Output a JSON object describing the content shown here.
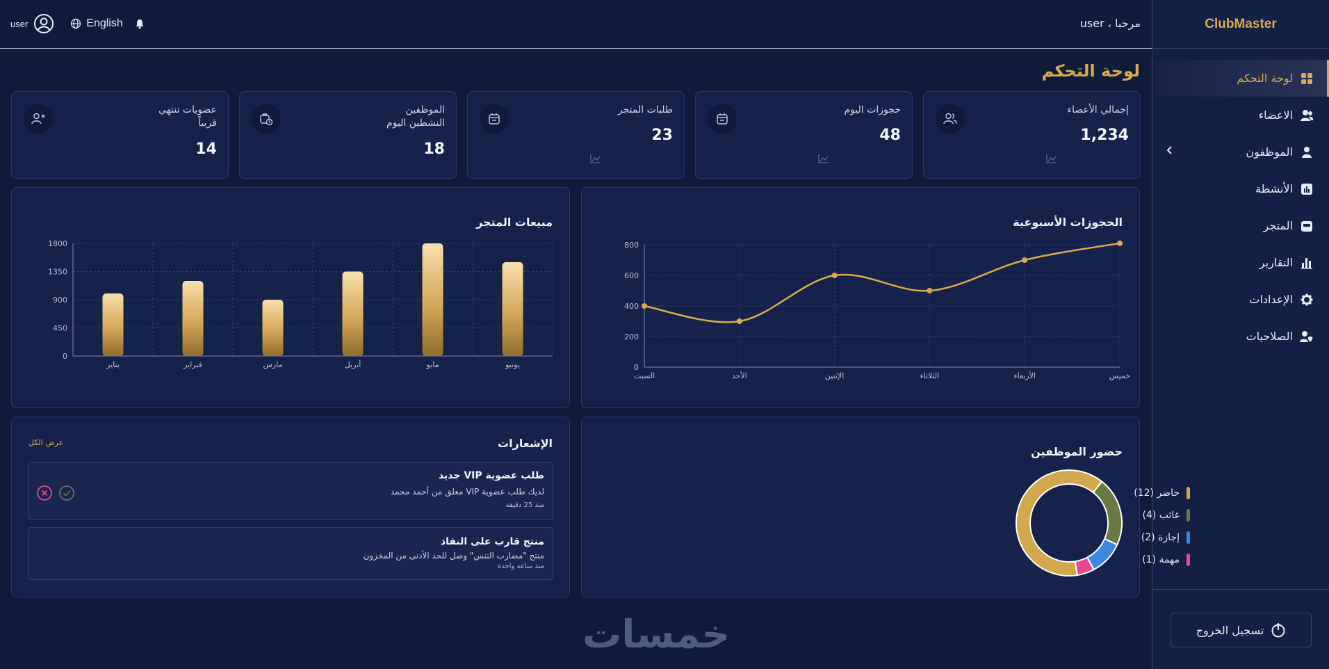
{
  "brand": "ClubMaster",
  "sidebar": {
    "items": [
      {
        "label": "لوحة التحكم",
        "icon": "grid-icon"
      },
      {
        "label": "الاعضاء",
        "icon": "users-icon"
      },
      {
        "label": "الموظفون",
        "icon": "employee-icon"
      },
      {
        "label": "الأنشطة",
        "icon": "activity-icon"
      },
      {
        "label": "المتجر",
        "icon": "store-icon"
      },
      {
        "label": "التقارير",
        "icon": "bar-chart-icon"
      },
      {
        "label": "الإعدادات",
        "icon": "gear-icon"
      },
      {
        "label": "الصلاحيات",
        "icon": "user-shield-icon"
      }
    ],
    "logout": "تسجيل الخروج"
  },
  "topbar": {
    "welcome": "مرحبا ، user",
    "user": "user",
    "language": "English"
  },
  "page_title": "لوحة التحكم",
  "stats": [
    {
      "label": "إجمالي الأعضاء",
      "value": "1,234"
    },
    {
      "label": "حجوزات اليوم",
      "value": "48"
    },
    {
      "label": "طلبات المتجر",
      "value": "23"
    },
    {
      "label_line1": "الموظفين",
      "label_line2": "النشطين اليوم",
      "value": "18"
    },
    {
      "label_line1": "عضويات تنتهي",
      "label_line2": "قريباً",
      "value": "14"
    }
  ],
  "weekly_bookings": {
    "title": "الحجوزات الأسبوعية",
    "chart_data": {
      "type": "line",
      "categories": [
        "السبت",
        "الأحد",
        "الإثنين",
        "الثلاثاء",
        "الأربعاء",
        "خميس"
      ],
      "values": [
        400,
        300,
        600,
        500,
        700,
        810
      ],
      "ylim": [
        0,
        800
      ],
      "yticks": [
        0,
        200,
        400,
        600,
        800
      ],
      "color": "#d7aa4f"
    }
  },
  "store_sales": {
    "title": "مبيعات المتجر",
    "chart_data": {
      "type": "bar",
      "categories": [
        "يناير",
        "فبراير",
        "مارس",
        "أبريل",
        "مايو",
        "يونيو"
      ],
      "values": [
        1000,
        1200,
        900,
        1350,
        1800,
        1500
      ],
      "ylim": [
        0,
        1800
      ],
      "yticks": [
        0,
        450,
        900,
        1350,
        1800
      ],
      "color": "#d7aa4f"
    }
  },
  "attendance": {
    "title": "حضور الموظفين",
    "chart_data": {
      "type": "pie",
      "labels": [
        "حاضر",
        "غائب",
        "إجازة",
        "مهمة"
      ],
      "values": [
        12,
        4,
        2,
        1
      ],
      "colors": [
        "#d2a84e",
        "#6b7a45",
        "#3f86e0",
        "#e4498b"
      ]
    },
    "legend": [
      "حاضر (12)",
      "غائب (4)",
      "إجازة (2)",
      "مهمة (1)"
    ]
  },
  "notifications": {
    "title": "الإشعارات",
    "view_all": "عرض الكل",
    "items": [
      {
        "title": "طلب عضوية VIP جديد",
        "body": "لديك طلب عضوية VIP معلق من أحمد محمد",
        "time": "منذ 25 دقيقة"
      },
      {
        "title": "منتج قارب على النفاذ",
        "body": "منتج \"مضارب التنس\" وصل للحد الأدنى من المخزون",
        "time": "منذ ساعة واحدة"
      }
    ]
  },
  "watermark": "خمسات"
}
